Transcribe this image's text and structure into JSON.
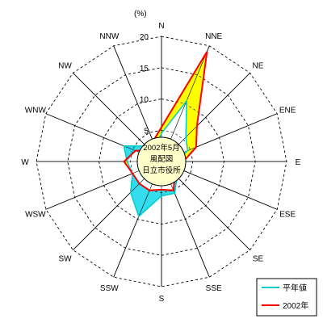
{
  "chart_data": {
    "type": "radar",
    "title_lines": [
      "2002年5月",
      "風配図",
      "日立市役所"
    ],
    "unit_label": "(%)",
    "radial_ticks": [
      "0",
      "5",
      "10",
      "15",
      "20"
    ],
    "rmax": 20,
    "directions": [
      "N",
      "NNE",
      "NE",
      "ENE",
      "E",
      "ESE",
      "SE",
      "SSE",
      "S",
      "SSW",
      "SW",
      "WSW",
      "W",
      "WNW",
      "NW",
      "NNW"
    ],
    "legend_position": "bottom-right",
    "series": [
      {
        "name": "平年値",
        "color": "#00cccc",
        "values": [
          4.5,
          10.5,
          5.5,
          4.5,
          2.5,
          3.5,
          3.5,
          5.5,
          5.5,
          9.5,
          7.0,
          5.0,
          5.5,
          6.5,
          3.5,
          2.5
        ]
      },
      {
        "name": "2002年",
        "color": "#ff0000",
        "values": [
          5.5,
          19.0,
          8.0,
          6.0,
          3.5,
          3.0,
          3.0,
          5.0,
          4.5,
          5.0,
          5.0,
          5.0,
          6.0,
          4.5,
          2.5,
          3.5
        ]
      }
    ],
    "fill_colors": {
      "excess_2002": "#ffff00",
      "excess_normal": "#33ddee"
    }
  }
}
